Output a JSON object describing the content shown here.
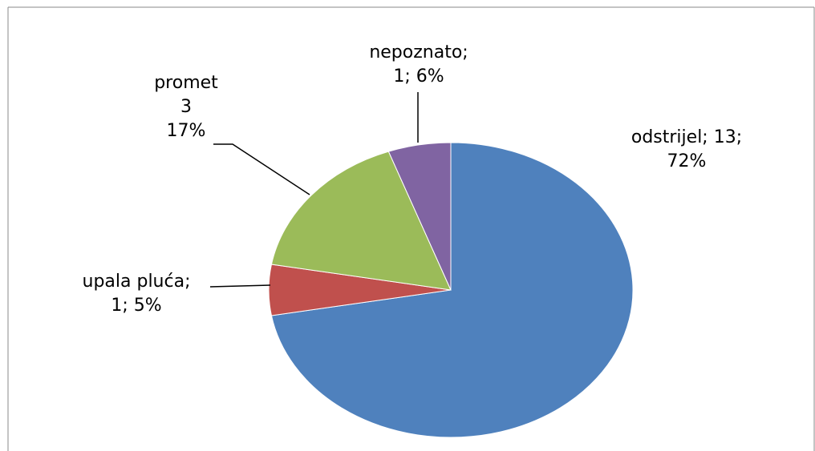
{
  "chart_data": {
    "type": "pie",
    "title": "",
    "slices": [
      {
        "label": "odstrijel",
        "value": 13,
        "percent": 72,
        "label_lines": [
          "odstrijel; 13;",
          "72%"
        ],
        "color": "#4F81BD"
      },
      {
        "label": "upala pluća",
        "value": 1,
        "percent": 5,
        "label_lines": [
          "upala pluća;",
          "1; 5%"
        ],
        "color": "#C0504D"
      },
      {
        "label": "promet",
        "value": 3,
        "percent": 17,
        "label_lines": [
          "promet",
          "3",
          "17%"
        ],
        "color": "#9BBB59"
      },
      {
        "label": "nepoznato",
        "value": 1,
        "percent": 6,
        "label_lines": [
          "nepoznato;",
          "1; 6%"
        ],
        "color": "#8064A2"
      }
    ],
    "legend": "none",
    "data_labels": "outside"
  }
}
